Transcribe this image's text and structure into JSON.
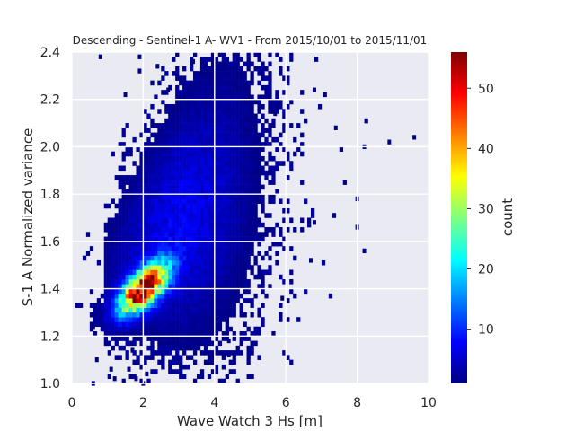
{
  "chart_data": {
    "type": "heatmap",
    "title": "Descending - Sentinel-1 A- WV1 - From 2015/10/01 to 2015/11/01",
    "xlabel": "Wave Watch 3 Hs [m]",
    "ylabel": "S-1 A Normalized variance",
    "xlim": [
      0,
      10
    ],
    "ylim": [
      1.0,
      2.4
    ],
    "xticks": [
      0,
      2,
      4,
      6,
      8,
      10
    ],
    "yticks": [
      1.0,
      1.2,
      1.4,
      1.6,
      1.8,
      2.0,
      2.2,
      2.4
    ],
    "xtick_labels": [
      "0",
      "2",
      "4",
      "6",
      "8",
      "10"
    ],
    "ytick_labels": [
      "1.0",
      "1.2",
      "1.4",
      "1.6",
      "1.8",
      "2.0",
      "2.2",
      "2.4"
    ],
    "grid": true,
    "background": "#eaeaf2",
    "colormap": "jet",
    "bin_width_x": 0.1,
    "bin_height_y": 0.02,
    "colorbar": {
      "label": "count",
      "min": 1,
      "max": 56,
      "ticks": [
        10,
        20,
        30,
        40,
        50
      ],
      "tick_labels": [
        "10",
        "20",
        "30",
        "40",
        "50"
      ]
    },
    "density_model": {
      "peak_count": 56,
      "main_peak": {
        "x": 2.0,
        "y": 1.4
      },
      "ridge_slope": 0.1,
      "regression_intercept": 1.2,
      "x_spread": 0.45,
      "y_spread": 0.055,
      "y_noise_sigma": 0.12
    },
    "outlier_bins": [
      {
        "x": 0.8,
        "y": 2.38
      },
      {
        "x": 1.9,
        "y": 2.38
      },
      {
        "x": 1.9,
        "y": 2.32
      },
      {
        "x": 3.4,
        "y": 2.36
      },
      {
        "x": 2.4,
        "y": 2.34
      },
      {
        "x": 1.5,
        "y": 2.22
      },
      {
        "x": 2.7,
        "y": 2.24
      },
      {
        "x": 6.8,
        "y": 2.24
      },
      {
        "x": 7.1,
        "y": 2.22
      },
      {
        "x": 8.9,
        "y": 2.02
      },
      {
        "x": 9.6,
        "y": 2.04
      },
      {
        "x": 8.2,
        "y": 2.0
      },
      {
        "x": 7.4,
        "y": 2.08
      },
      {
        "x": 5.7,
        "y": 2.14
      },
      {
        "x": 4.9,
        "y": 2.12
      },
      {
        "x": 8.0,
        "y": 1.78
      },
      {
        "x": 8.2,
        "y": 1.56
      },
      {
        "x": 8.0,
        "y": 1.66
      },
      {
        "x": 6.8,
        "y": 1.68
      },
      {
        "x": 6.7,
        "y": 1.52
      },
      {
        "x": 5.9,
        "y": 1.36
      },
      {
        "x": 4.4,
        "y": 1.18
      },
      {
        "x": 4.4,
        "y": 1.12
      },
      {
        "x": 0.6,
        "y": 1.0
      },
      {
        "x": 1.1,
        "y": 1.06
      },
      {
        "x": 1.8,
        "y": 1.02
      },
      {
        "x": 2.0,
        "y": 1.0
      },
      {
        "x": 2.1,
        "y": 1.04
      },
      {
        "x": 1.6,
        "y": 1.06
      },
      {
        "x": 0.7,
        "y": 1.1
      },
      {
        "x": 0.6,
        "y": 1.24
      },
      {
        "x": 1.2,
        "y": 1.02
      },
      {
        "x": 1.7,
        "y": 1.14
      }
    ]
  }
}
